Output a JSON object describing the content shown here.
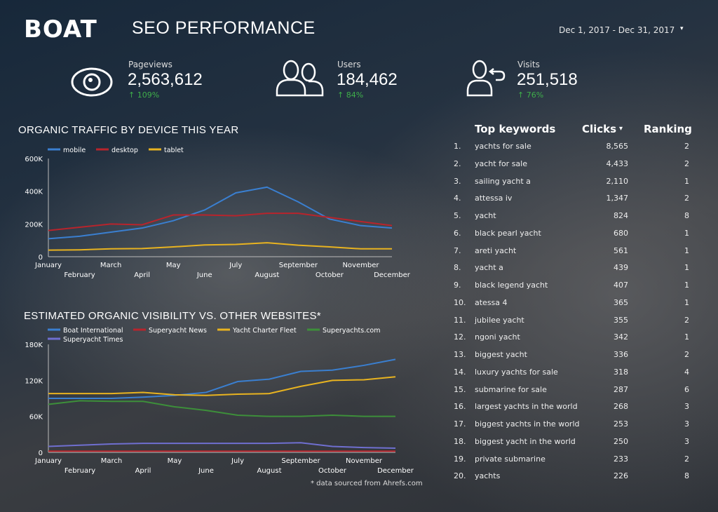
{
  "header": {
    "logo": "BOAT",
    "title": "SEO PERFORMANCE",
    "date_range": "Dec 1, 2017 - Dec 31, 2017",
    "date_caret": "▾"
  },
  "kpis": [
    {
      "icon": "eye-icon",
      "label": "Pageviews",
      "value": "2,563,612",
      "delta": "↑ 109%"
    },
    {
      "icon": "users-icon",
      "label": "Users",
      "value": "184,462",
      "delta": "↑ 84%"
    },
    {
      "icon": "returning-user-icon",
      "label": "Visits",
      "value": "251,518",
      "delta": "↑ 76%"
    }
  ],
  "colors": {
    "blue": "#3a7fd0",
    "red": "#b8242c",
    "yellow": "#e8b320",
    "green": "#3d8f3a",
    "purple": "#6f6fd0",
    "delta_green": "#3fae4a"
  },
  "chart_data": [
    {
      "type": "line",
      "title": "ORGANIC TRAFFIC BY DEVICE THIS YEAR",
      "legend": "top-left",
      "categories": [
        "January",
        "February",
        "March",
        "April",
        "May",
        "June",
        "July",
        "August",
        "September",
        "October",
        "November",
        "December"
      ],
      "ylim": [
        0,
        600000
      ],
      "yticks": [
        "0",
        "200K",
        "400K",
        "600K"
      ],
      "ytick_values": [
        0,
        200000,
        400000,
        600000
      ],
      "series": [
        {
          "name": "mobile",
          "color": "#3a7fd0",
          "values": [
            110000,
            125000,
            150000,
            175000,
            220000,
            285000,
            390000,
            425000,
            335000,
            230000,
            190000,
            175000
          ]
        },
        {
          "name": "desktop",
          "color": "#b8242c",
          "values": [
            160000,
            180000,
            200000,
            195000,
            255000,
            255000,
            250000,
            265000,
            265000,
            240000,
            215000,
            190000
          ]
        },
        {
          "name": "tablet",
          "color": "#e8b320",
          "values": [
            40000,
            42000,
            48000,
            50000,
            60000,
            72000,
            75000,
            85000,
            70000,
            60000,
            48000,
            48000
          ]
        }
      ]
    },
    {
      "type": "line",
      "title": "ESTIMATED ORGANIC VISIBILITY VS. OTHER WEBSITES*",
      "legend": "top-left",
      "categories": [
        "January",
        "February",
        "March",
        "April",
        "May",
        "June",
        "July",
        "August",
        "September",
        "October",
        "November",
        "December"
      ],
      "ylim": [
        0,
        180000
      ],
      "yticks": [
        "0",
        "60K",
        "120K",
        "180K"
      ],
      "ytick_values": [
        0,
        60000,
        120000,
        180000
      ],
      "series": [
        {
          "name": "Boat International",
          "color": "#3a7fd0",
          "values": [
            90000,
            90000,
            90000,
            92000,
            95000,
            100000,
            118000,
            122000,
            135000,
            137000,
            145000,
            155000
          ]
        },
        {
          "name": "Superyacht News",
          "color": "#b8242c",
          "values": [
            2000,
            2000,
            2000,
            2000,
            2000,
            2000,
            2000,
            2000,
            2000,
            2000,
            2000,
            2000
          ]
        },
        {
          "name": "Yacht Charter Fleet",
          "color": "#e8b320",
          "values": [
            98000,
            98000,
            98000,
            100000,
            96000,
            95000,
            97000,
            98000,
            110000,
            120000,
            121000,
            126000
          ]
        },
        {
          "name": "Superyachts.com",
          "color": "#3d8f3a",
          "values": [
            80000,
            86000,
            85000,
            85000,
            76000,
            70000,
            62000,
            60000,
            60000,
            62000,
            60000,
            60000
          ]
        },
        {
          "name": "Superyacht Times",
          "color": "#6f6fd0",
          "values": [
            10000,
            12000,
            14000,
            15000,
            15000,
            15000,
            15000,
            15000,
            16000,
            10000,
            8000,
            7000
          ]
        }
      ],
      "footnote": "* data sourced from Ahrefs.com"
    }
  ],
  "keywords": {
    "headers": {
      "keyword": "Top keywords",
      "clicks": "Clicks",
      "sort_caret": "▾",
      "ranking": "Ranking"
    },
    "rows": [
      {
        "n": "1.",
        "keyword": "yachts for sale",
        "clicks": "8,565",
        "ranking": "2"
      },
      {
        "n": "2.",
        "keyword": "yacht for sale",
        "clicks": "4,433",
        "ranking": "2"
      },
      {
        "n": "3.",
        "keyword": "sailing yacht a",
        "clicks": "2,110",
        "ranking": "1"
      },
      {
        "n": "4.",
        "keyword": "attessa iv",
        "clicks": "1,347",
        "ranking": "2"
      },
      {
        "n": "5.",
        "keyword": "yacht",
        "clicks": "824",
        "ranking": "8"
      },
      {
        "n": "6.",
        "keyword": "black pearl yacht",
        "clicks": "680",
        "ranking": "1"
      },
      {
        "n": "7.",
        "keyword": "areti yacht",
        "clicks": "561",
        "ranking": "1"
      },
      {
        "n": "8.",
        "keyword": "yacht a",
        "clicks": "439",
        "ranking": "1"
      },
      {
        "n": "9.",
        "keyword": "black legend yacht",
        "clicks": "407",
        "ranking": "1"
      },
      {
        "n": "10.",
        "keyword": "atessa 4",
        "clicks": "365",
        "ranking": "1"
      },
      {
        "n": "11.",
        "keyword": "jubilee yacht",
        "clicks": "355",
        "ranking": "2"
      },
      {
        "n": "12.",
        "keyword": "ngoni yacht",
        "clicks": "342",
        "ranking": "1"
      },
      {
        "n": "13.",
        "keyword": "biggest yacht",
        "clicks": "336",
        "ranking": "2"
      },
      {
        "n": "14.",
        "keyword": "luxury yachts for sale",
        "clicks": "318",
        "ranking": "4"
      },
      {
        "n": "15.",
        "keyword": "submarine for sale",
        "clicks": "287",
        "ranking": "6"
      },
      {
        "n": "16.",
        "keyword": "largest yachts in the world",
        "clicks": "268",
        "ranking": "3"
      },
      {
        "n": "17.",
        "keyword": "biggest yachts in the world",
        "clicks": "253",
        "ranking": "3"
      },
      {
        "n": "18.",
        "keyword": "biggest yacht in the world",
        "clicks": "250",
        "ranking": "3"
      },
      {
        "n": "19.",
        "keyword": "private submarine",
        "clicks": "233",
        "ranking": "2"
      },
      {
        "n": "20.",
        "keyword": "yachts",
        "clicks": "226",
        "ranking": "8"
      }
    ]
  }
}
